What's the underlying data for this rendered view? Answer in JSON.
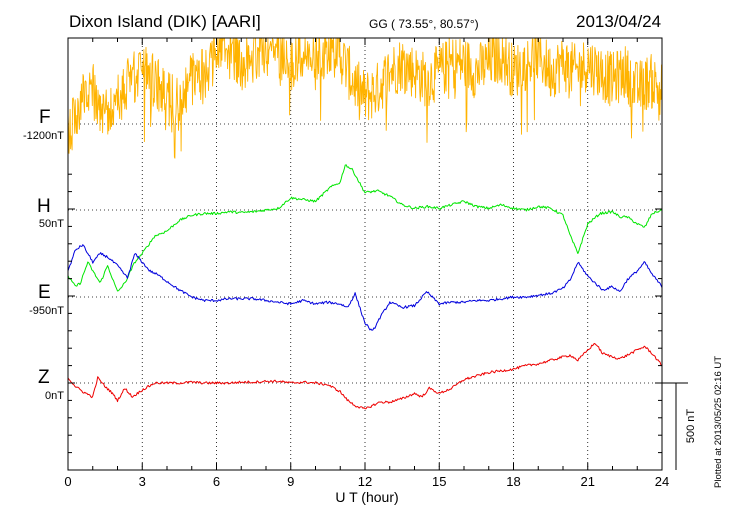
{
  "header": {
    "station": "Dixon Island (DIK)  [AARI]",
    "coords": "GG ( 73.55°,  80.57°)",
    "date": "2013/04/24"
  },
  "footer": {
    "plotted_at": "Plotted at 2013/05/25 02:16 UT"
  },
  "chart_data": {
    "type": "line",
    "title": "Dixon Island (DIK)  [AARI]",
    "xlabel": "U T (hour)",
    "xlim": [
      0,
      24
    ],
    "xticks": [
      "0",
      "3",
      "6",
      "9",
      "12",
      "15",
      "18",
      "21",
      "24"
    ],
    "scale_bar_label": "500 nT",
    "scale_bar_nT": 500,
    "series": [
      {
        "name": "F",
        "baseline": "-1200nT",
        "color": "#FFB300",
        "noisy": true,
        "noise_amp_nT": 160,
        "x": [
          0,
          0.3,
          0.6,
          1.0,
          1.3,
          1.6,
          2.0,
          2.5,
          3.0,
          3.5,
          4.0,
          4.5,
          5.0,
          5.5,
          6.0,
          6.5,
          7.0,
          7.5,
          8.0,
          8.5,
          9.0,
          9.5,
          10.0,
          10.5,
          11.0,
          11.5,
          12.0,
          12.5,
          13.0,
          13.5,
          14.0,
          14.5,
          15.0,
          15.5,
          16.0,
          16.5,
          17.0,
          17.5,
          18.0,
          18.5,
          19.0,
          19.5,
          20.0,
          20.5,
          21.0,
          21.5,
          22.0,
          22.5,
          23.0,
          23.5,
          24.0
        ],
        "values": [
          -50,
          50,
          150,
          200,
          100,
          50,
          150,
          250,
          300,
          250,
          150,
          100,
          250,
          300,
          400,
          450,
          350,
          400,
          450,
          400,
          350,
          400,
          350,
          450,
          400,
          250,
          150,
          200,
          300,
          350,
          300,
          250,
          300,
          350,
          350,
          300,
          350,
          400,
          300,
          350,
          400,
          300,
          350,
          300,
          350,
          300,
          250,
          300,
          200,
          250,
          200
        ]
      },
      {
        "name": "H",
        "baseline": "50nT",
        "color": "#00E600",
        "noisy": false,
        "x": [
          0,
          0.3,
          0.5,
          0.8,
          1.0,
          1.3,
          1.6,
          2.0,
          2.3,
          2.7,
          3.0,
          3.5,
          4.0,
          4.5,
          5.0,
          5.5,
          6.0,
          6.5,
          7.0,
          7.5,
          8.0,
          8.5,
          9.0,
          9.5,
          10.0,
          10.3,
          10.6,
          11.0,
          11.2,
          11.5,
          11.8,
          12.0,
          12.5,
          13.0,
          13.5,
          14.0,
          14.5,
          15.0,
          15.5,
          16.0,
          16.5,
          17.0,
          17.5,
          18.0,
          18.5,
          19.0,
          19.5,
          20.0,
          20.3,
          20.6,
          21.0,
          21.5,
          22.0,
          22.3,
          22.6,
          23.0,
          23.3,
          23.6,
          24.0
        ],
        "values": [
          -380,
          -440,
          -420,
          -300,
          -350,
          -420,
          -320,
          -470,
          -420,
          -300,
          -250,
          -150,
          -120,
          -60,
          -30,
          -20,
          -20,
          -10,
          -15,
          -10,
          0,
          10,
          70,
          60,
          50,
          90,
          130,
          160,
          260,
          230,
          150,
          100,
          110,
          80,
          30,
          10,
          20,
          10,
          30,
          50,
          20,
          10,
          30,
          10,
          0,
          20,
          10,
          -30,
          -150,
          -250,
          -80,
          -20,
          -10,
          -40,
          -40,
          -80,
          -100,
          -20,
          0
        ]
      },
      {
        "name": "E",
        "baseline": "-950nT",
        "color": "#0000DD",
        "noisy": false,
        "x": [
          0,
          0.3,
          0.6,
          1.0,
          1.3,
          1.6,
          2.0,
          2.4,
          2.7,
          3.0,
          3.3,
          3.6,
          4.0,
          4.5,
          5.0,
          5.5,
          6.0,
          6.5,
          7.0,
          7.5,
          8.0,
          8.5,
          9.0,
          9.5,
          10.0,
          10.5,
          11.0,
          11.3,
          11.6,
          12.0,
          12.3,
          12.6,
          13.0,
          13.5,
          14.0,
          14.5,
          15.0,
          15.5,
          16.0,
          16.5,
          17.0,
          17.5,
          18.0,
          18.5,
          19.0,
          19.5,
          20.0,
          20.3,
          20.6,
          21.0,
          21.3,
          21.6,
          22.0,
          22.3,
          22.6,
          23.0,
          23.3,
          23.6,
          24.0
        ],
        "values": [
          150,
          270,
          300,
          200,
          250,
          230,
          180,
          110,
          250,
          200,
          150,
          130,
          90,
          40,
          0,
          -20,
          -20,
          -10,
          -10,
          -10,
          -20,
          -30,
          -40,
          -20,
          -40,
          -30,
          -40,
          -60,
          20,
          -150,
          -200,
          -120,
          -30,
          -60,
          -50,
          30,
          -40,
          -30,
          -30,
          -20,
          -20,
          -10,
          0,
          0,
          10,
          20,
          50,
          100,
          200,
          120,
          80,
          40,
          60,
          30,
          100,
          150,
          200,
          130,
          60
        ]
      },
      {
        "name": "Z",
        "baseline": "0nT",
        "color": "#EE0000",
        "noisy": false,
        "x": [
          0,
          0.3,
          0.6,
          1.0,
          1.2,
          1.5,
          1.8,
          2.0,
          2.3,
          2.6,
          3.0,
          3.5,
          4.0,
          4.5,
          5.0,
          5.5,
          6.0,
          6.5,
          7.0,
          7.5,
          8.0,
          8.5,
          9.0,
          9.5,
          10.0,
          10.5,
          11.0,
          11.3,
          11.6,
          12.0,
          12.3,
          12.6,
          13.0,
          13.5,
          14.0,
          14.3,
          14.6,
          15.0,
          15.5,
          16.0,
          16.5,
          17.0,
          17.5,
          18.0,
          18.5,
          19.0,
          19.5,
          20.0,
          20.3,
          20.6,
          21.0,
          21.3,
          21.6,
          22.0,
          22.3,
          22.6,
          23.0,
          23.3,
          23.6,
          24.0
        ],
        "values": [
          30,
          -20,
          -50,
          -80,
          30,
          -20,
          -60,
          -100,
          -30,
          -80,
          -40,
          0,
          0,
          0,
          5,
          0,
          0,
          0,
          5,
          5,
          10,
          10,
          0,
          5,
          0,
          -10,
          -50,
          -100,
          -130,
          -150,
          -130,
          -110,
          -110,
          -90,
          -60,
          -80,
          -30,
          -60,
          -30,
          20,
          40,
          60,
          70,
          80,
          100,
          110,
          130,
          150,
          160,
          130,
          190,
          230,
          170,
          150,
          140,
          160,
          190,
          210,
          170,
          100
        ]
      }
    ]
  }
}
